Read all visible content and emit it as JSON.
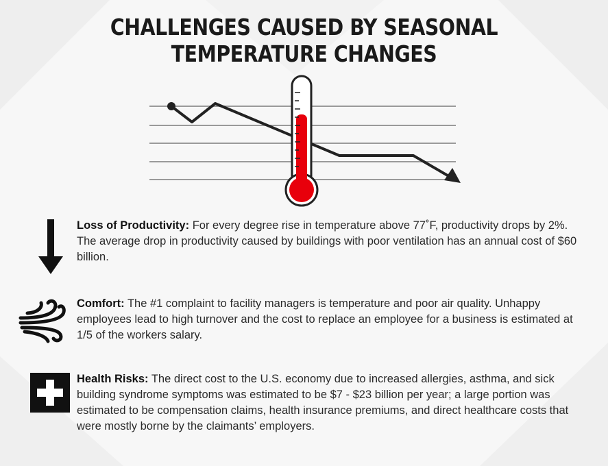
{
  "title": "CHALLENGES CAUSED BY SEASONAL TEMPERATURE CHANGES",
  "items": [
    {
      "icon": "down-arrow-icon",
      "heading": "Loss of Productivity:",
      "body": " For every degree rise in temperature above 77˚F, productivity drops by 2%. The average drop in productivity caused by buildings with poor ventilation has an annual cost of $60 billion."
    },
    {
      "icon": "wind-icon",
      "heading": "Comfort:",
      "body": " The #1 complaint to facility managers is temperature and poor air quality. Unhappy employees lead to high turnover and the cost to replace an employee for a business is estimated at 1/5 of the workers salary."
    },
    {
      "icon": "medical-cross-icon",
      "heading": "Health Risks:",
      "body": " The direct cost to the U.S. economy due to increased allergies, asthma, and sick building syndrome symptoms was estimated to be $7 - $23 billion per year; a large portion was estimated to be compensation claims, health insurance premiums, and direct healthcare costs that were mostly borne by the claimants’ employers."
    }
  ],
  "illustration": {
    "icon": "thermometer-icon",
    "trend_icon": "declining-trend-icon",
    "mercury_color": "#e8000b",
    "line_color": "#222222"
  }
}
